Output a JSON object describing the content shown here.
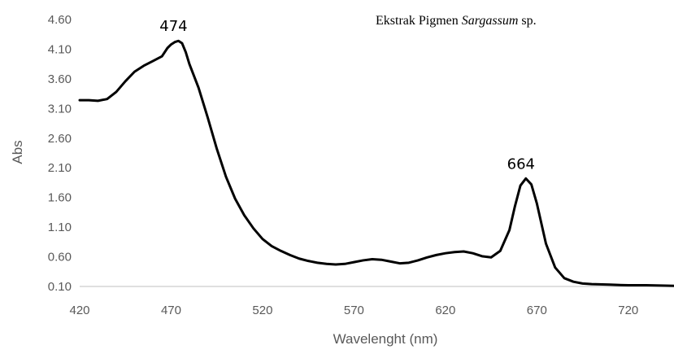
{
  "chart_data": {
    "type": "line",
    "title_parts": [
      {
        "text": "Ekstrak Pigmen ",
        "italic": false
      },
      {
        "text": "Sargassum",
        "italic": true
      },
      {
        "text": " sp.",
        "italic": false
      }
    ],
    "xlabel": "Wavelenght (nm)",
    "ylabel": "Abs",
    "xlim": [
      420,
      745
    ],
    "ylim": [
      0.1,
      4.6
    ],
    "x_ticks": [
      "420",
      "470",
      "520",
      "570",
      "620",
      "670",
      "720"
    ],
    "y_ticks": [
      "0.10",
      "0.60",
      "1.10",
      "1.60",
      "2.10",
      "2.60",
      "3.10",
      "3.60",
      "4.10",
      "4.60"
    ],
    "grid": false,
    "legend": "none",
    "line_color": "#000000",
    "series": [
      {
        "x": [
          420,
          425,
          430,
          435,
          440,
          445,
          450,
          455,
          460,
          465,
          468,
          470,
          472,
          474,
          476,
          478,
          480,
          485,
          490,
          495,
          500,
          505,
          510,
          515,
          520,
          525,
          530,
          535,
          540,
          545,
          550,
          555,
          560,
          565,
          570,
          575,
          580,
          585,
          590,
          595,
          600,
          605,
          610,
          615,
          620,
          625,
          630,
          635,
          640,
          645,
          650,
          655,
          658,
          661,
          664,
          667,
          670,
          675,
          680,
          685,
          690,
          695,
          700,
          710,
          720,
          730,
          745
        ],
        "y": [
          3.24,
          3.24,
          3.23,
          3.26,
          3.38,
          3.56,
          3.72,
          3.82,
          3.9,
          3.98,
          4.12,
          4.18,
          4.22,
          4.24,
          4.2,
          4.05,
          3.85,
          3.45,
          2.95,
          2.42,
          1.95,
          1.58,
          1.3,
          1.08,
          0.9,
          0.78,
          0.7,
          0.63,
          0.57,
          0.53,
          0.5,
          0.48,
          0.47,
          0.48,
          0.51,
          0.54,
          0.56,
          0.55,
          0.52,
          0.49,
          0.5,
          0.54,
          0.59,
          0.63,
          0.66,
          0.68,
          0.69,
          0.66,
          0.61,
          0.59,
          0.7,
          1.05,
          1.45,
          1.8,
          1.92,
          1.82,
          1.5,
          0.82,
          0.42,
          0.24,
          0.18,
          0.15,
          0.14,
          0.13,
          0.12,
          0.12,
          0.11
        ]
      }
    ],
    "annotations": [
      {
        "text": "474",
        "x": 474,
        "y": 4.24
      },
      {
        "text": "664",
        "x": 664,
        "y": 1.92
      }
    ]
  }
}
